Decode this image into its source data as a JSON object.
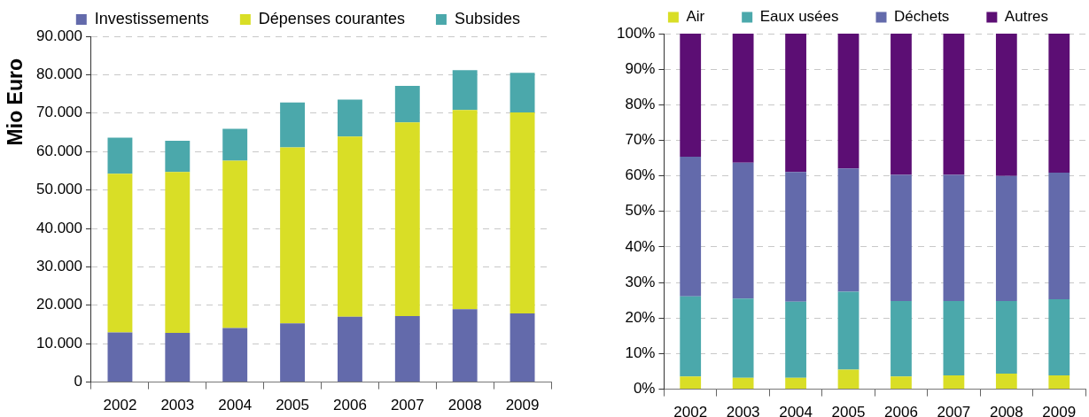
{
  "chart_data": [
    {
      "type": "bar",
      "stacked": true,
      "ylabel": "Mio Euro",
      "legend": "top",
      "grid": "y",
      "categories": [
        "2002",
        "2003",
        "2004",
        "2005",
        "2006",
        "2007",
        "2008",
        "2009"
      ],
      "series": [
        {
          "name": "Investissements",
          "color": "#636aab",
          "values": [
            12900,
            12800,
            14100,
            15300,
            17000,
            17200,
            19000,
            17900
          ]
        },
        {
          "name": "Dépenses courantes",
          "color": "#d9de26",
          "values": [
            41300,
            41900,
            43500,
            45800,
            46900,
            50400,
            51800,
            52300
          ]
        },
        {
          "name": "Subsides",
          "color": "#4ba8ab",
          "values": [
            9400,
            8100,
            8300,
            11700,
            9600,
            9500,
            10400,
            10300
          ]
        }
      ],
      "ylim": [
        0,
        90000
      ],
      "yticks": [
        0,
        {
          "value": 10000,
          "label": "10.000"
        },
        {
          "value": 20000,
          "label": "20.000"
        },
        {
          "value": 30000,
          "label": "30.000"
        },
        {
          "value": 40000,
          "label": "40.000"
        },
        {
          "value": 50000,
          "label": "50.000"
        },
        {
          "value": 60000,
          "label": "60.000"
        },
        {
          "value": 70000,
          "label": "70.000"
        },
        {
          "value": 80000,
          "label": "80.000"
        },
        {
          "value": 90000,
          "label": "90.000"
        }
      ]
    },
    {
      "type": "bar",
      "stacked": true,
      "legend": "top",
      "grid": "y",
      "categories": [
        "2002",
        "2003",
        "2004",
        "2005",
        "2006",
        "2007",
        "2008",
        "2009"
      ],
      "series": [
        {
          "name": "Air",
          "color": "#d9de26",
          "values": [
            3.6,
            3.2,
            3.2,
            5.5,
            3.6,
            3.9,
            4.4,
            3.9
          ]
        },
        {
          "name": "Eaux usées",
          "color": "#4ba8ab",
          "values": [
            22.5,
            22.3,
            21.4,
            21.9,
            21.2,
            20.9,
            20.4,
            21.4
          ]
        },
        {
          "name": "Déchets",
          "color": "#636aab",
          "values": [
            39.3,
            38.2,
            36.5,
            34.7,
            35.5,
            35.5,
            35.2,
            35.6
          ]
        },
        {
          "name": "Autres",
          "color": "#5c0e74",
          "values": [
            34.6,
            36.3,
            38.9,
            37.9,
            39.7,
            39.7,
            40.0,
            39.1
          ]
        }
      ],
      "ylim": [
        0,
        100
      ],
      "yticks": [
        {
          "value": 0,
          "label": "0%"
        },
        {
          "value": 10,
          "label": "10%"
        },
        {
          "value": 20,
          "label": "20%"
        },
        {
          "value": 30,
          "label": "30%"
        },
        {
          "value": 40,
          "label": "40%"
        },
        {
          "value": 50,
          "label": "50%"
        },
        {
          "value": 60,
          "label": "60%"
        },
        {
          "value": 70,
          "label": "70%"
        },
        {
          "value": 80,
          "label": "80%"
        },
        {
          "value": 90,
          "label": "90%"
        },
        {
          "value": 100,
          "label": "100%"
        }
      ]
    }
  ]
}
